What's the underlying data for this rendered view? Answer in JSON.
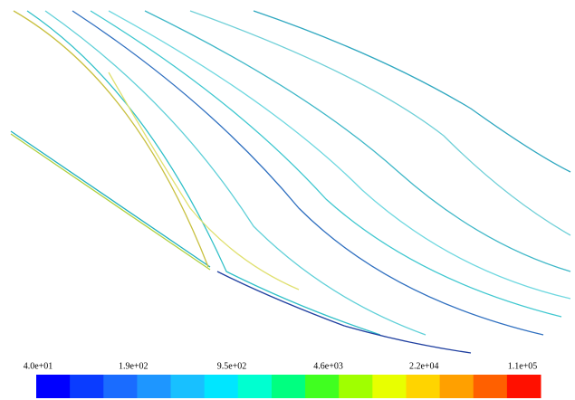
{
  "chart_data": {
    "type": "contour",
    "colorbar": {
      "log_scale": true,
      "clim": [
        40,
        110000
      ],
      "cticks": [
        {
          "value": 40,
          "label": "4.0e+01"
        },
        {
          "value": 190,
          "label": "1.9e+02"
        },
        {
          "value": 950,
          "label": "9.5e+02"
        },
        {
          "value": 4600,
          "label": "4.6e+03"
        },
        {
          "value": 22000,
          "label": "2.2e+04"
        },
        {
          "value": 110000,
          "label": "1.1e+05"
        }
      ],
      "colors": [
        "#0000ff",
        "#0a3cff",
        "#1a6cff",
        "#1e96ff",
        "#18c0ff",
        "#00e6ff",
        "#00ffd0",
        "#00ff80",
        "#40ff20",
        "#a0ff00",
        "#e8ff00",
        "#ffd400",
        "#ffa000",
        "#ff6000",
        "#ff1000"
      ]
    }
  }
}
